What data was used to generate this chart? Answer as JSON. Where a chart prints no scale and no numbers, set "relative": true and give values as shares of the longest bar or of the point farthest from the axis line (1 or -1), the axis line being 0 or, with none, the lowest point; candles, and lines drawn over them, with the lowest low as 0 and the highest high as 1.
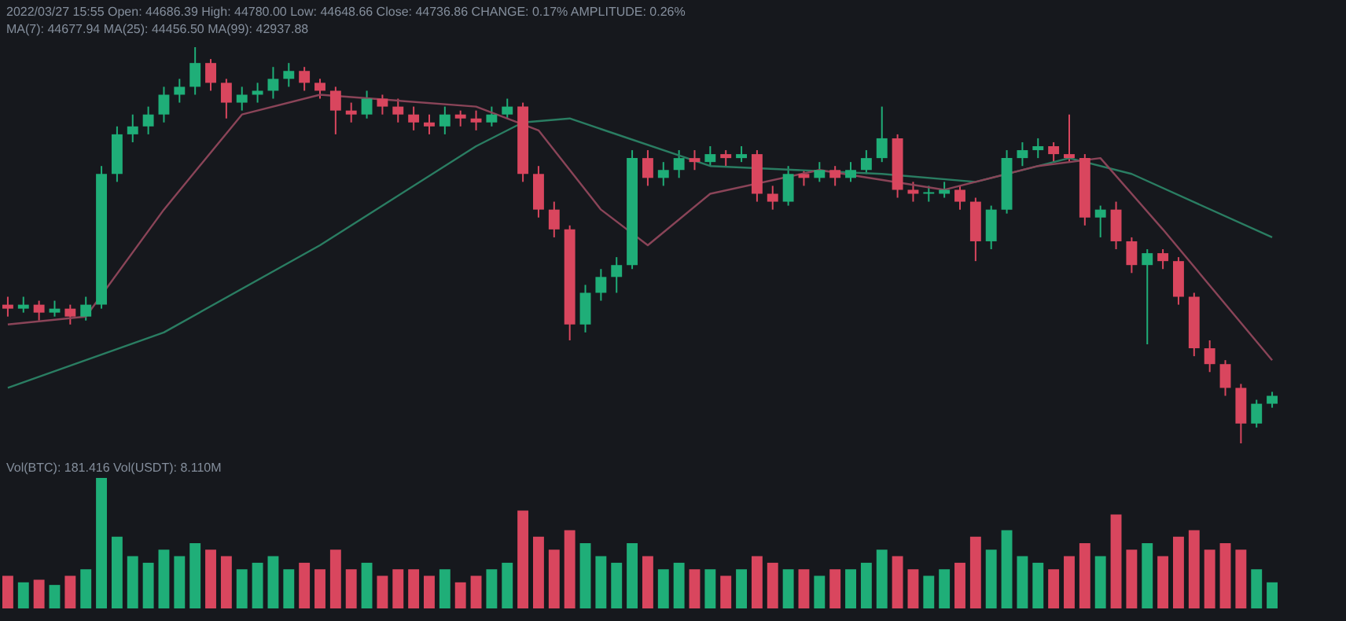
{
  "chart_data": [
    {
      "type": "candlestick",
      "relative": true,
      "title": "2022/03/27 15:55 Open: 44686.39 High: 44780.00 Low: 44648.66 Close: 44736.86 CHANGE: 0.17% AMPLITUDE: 0.26%",
      "subtitle": "MA(7): 44677.94 MA(25): 44456.50 MA(99): 42937.88",
      "categories": [
        null,
        null,
        null,
        null,
        null,
        null,
        null,
        null,
        null,
        null,
        null,
        null,
        null,
        null,
        null,
        null,
        null,
        null,
        null,
        null,
        null,
        null,
        null,
        null,
        null,
        null,
        null,
        null,
        null,
        null,
        null,
        null,
        null,
        null,
        null,
        null,
        null,
        null,
        null,
        null,
        null,
        null,
        null,
        null,
        null,
        null,
        null,
        null,
        null,
        null,
        null,
        null,
        null,
        null,
        null,
        null,
        null,
        null,
        null,
        null,
        null,
        null,
        null,
        null,
        null,
        null,
        null,
        null,
        null,
        null,
        null,
        null,
        null,
        null,
        null,
        null,
        null,
        null,
        null,
        null,
        null,
        null
      ],
      "ohlc": [
        [
          0.35,
          0.37,
          0.32,
          0.34
        ],
        [
          0.34,
          0.37,
          0.33,
          0.35
        ],
        [
          0.35,
          0.36,
          0.31,
          0.33
        ],
        [
          0.33,
          0.36,
          0.32,
          0.34
        ],
        [
          0.34,
          0.35,
          0.3,
          0.32
        ],
        [
          0.32,
          0.37,
          0.31,
          0.35
        ],
        [
          0.35,
          0.7,
          0.34,
          0.68
        ],
        [
          0.68,
          0.8,
          0.66,
          0.78
        ],
        [
          0.78,
          0.83,
          0.76,
          0.8
        ],
        [
          0.8,
          0.85,
          0.78,
          0.83
        ],
        [
          0.83,
          0.9,
          0.81,
          0.88
        ],
        [
          0.88,
          0.92,
          0.86,
          0.9
        ],
        [
          0.9,
          1.0,
          0.88,
          0.96
        ],
        [
          0.96,
          0.97,
          0.89,
          0.91
        ],
        [
          0.91,
          0.92,
          0.82,
          0.86
        ],
        [
          0.86,
          0.9,
          0.84,
          0.88
        ],
        [
          0.88,
          0.91,
          0.86,
          0.89
        ],
        [
          0.89,
          0.95,
          0.87,
          0.92
        ],
        [
          0.92,
          0.96,
          0.9,
          0.94
        ],
        [
          0.94,
          0.95,
          0.89,
          0.91
        ],
        [
          0.91,
          0.92,
          0.87,
          0.89
        ],
        [
          0.89,
          0.9,
          0.78,
          0.84
        ],
        [
          0.84,
          0.86,
          0.81,
          0.83
        ],
        [
          0.83,
          0.89,
          0.82,
          0.87
        ],
        [
          0.87,
          0.88,
          0.83,
          0.85
        ],
        [
          0.85,
          0.87,
          0.81,
          0.83
        ],
        [
          0.83,
          0.85,
          0.79,
          0.81
        ],
        [
          0.81,
          0.83,
          0.78,
          0.8
        ],
        [
          0.8,
          0.85,
          0.78,
          0.83
        ],
        [
          0.83,
          0.84,
          0.8,
          0.82
        ],
        [
          0.82,
          0.84,
          0.79,
          0.81
        ],
        [
          0.81,
          0.85,
          0.8,
          0.83
        ],
        [
          0.83,
          0.87,
          0.82,
          0.85
        ],
        [
          0.85,
          0.86,
          0.66,
          0.68
        ],
        [
          0.68,
          0.7,
          0.57,
          0.59
        ],
        [
          0.59,
          0.61,
          0.52,
          0.54
        ],
        [
          0.54,
          0.55,
          0.26,
          0.3
        ],
        [
          0.3,
          0.4,
          0.28,
          0.38
        ],
        [
          0.38,
          0.44,
          0.36,
          0.42
        ],
        [
          0.42,
          0.47,
          0.38,
          0.45
        ],
        [
          0.45,
          0.74,
          0.44,
          0.72
        ],
        [
          0.72,
          0.74,
          0.65,
          0.67
        ],
        [
          0.67,
          0.71,
          0.65,
          0.69
        ],
        [
          0.69,
          0.74,
          0.67,
          0.72
        ],
        [
          0.72,
          0.74,
          0.69,
          0.71
        ],
        [
          0.71,
          0.75,
          0.7,
          0.73
        ],
        [
          0.73,
          0.74,
          0.7,
          0.72
        ],
        [
          0.72,
          0.75,
          0.71,
          0.73
        ],
        [
          0.73,
          0.74,
          0.61,
          0.63
        ],
        [
          0.63,
          0.65,
          0.59,
          0.61
        ],
        [
          0.61,
          0.7,
          0.6,
          0.68
        ],
        [
          0.68,
          0.69,
          0.65,
          0.67
        ],
        [
          0.67,
          0.71,
          0.66,
          0.69
        ],
        [
          0.69,
          0.7,
          0.65,
          0.67
        ],
        [
          0.67,
          0.71,
          0.66,
          0.69
        ],
        [
          0.69,
          0.74,
          0.68,
          0.72
        ],
        [
          0.72,
          0.85,
          0.71,
          0.77
        ],
        [
          0.77,
          0.78,
          0.62,
          0.64
        ],
        [
          0.64,
          0.66,
          0.61,
          0.63
        ],
        [
          0.63,
          0.65,
          0.61,
          0.63
        ],
        [
          0.63,
          0.66,
          0.62,
          0.64
        ],
        [
          0.64,
          0.65,
          0.59,
          0.61
        ],
        [
          0.61,
          0.62,
          0.46,
          0.51
        ],
        [
          0.51,
          0.6,
          0.49,
          0.59
        ],
        [
          0.59,
          0.74,
          0.58,
          0.72
        ],
        [
          0.72,
          0.76,
          0.7,
          0.74
        ],
        [
          0.74,
          0.77,
          0.72,
          0.75
        ],
        [
          0.75,
          0.76,
          0.71,
          0.73
        ],
        [
          0.73,
          0.83,
          0.71,
          0.72
        ],
        [
          0.72,
          0.73,
          0.55,
          0.57
        ],
        [
          0.57,
          0.6,
          0.52,
          0.59
        ],
        [
          0.59,
          0.61,
          0.49,
          0.51
        ],
        [
          0.51,
          0.52,
          0.43,
          0.45
        ],
        [
          0.45,
          0.49,
          0.25,
          0.48
        ],
        [
          0.48,
          0.49,
          0.44,
          0.46
        ],
        [
          0.46,
          0.47,
          0.35,
          0.37
        ],
        [
          0.37,
          0.38,
          0.22,
          0.24
        ],
        [
          0.24,
          0.26,
          0.18,
          0.2
        ],
        [
          0.2,
          0.21,
          0.12,
          0.14
        ],
        [
          0.14,
          0.15,
          0.0,
          0.05
        ],
        [
          0.05,
          0.11,
          0.04,
          0.1
        ],
        [
          0.1,
          0.13,
          0.09,
          0.12
        ]
      ],
      "colors": [
        "#d9465e",
        "#1fae78",
        "#d9465e",
        "#1fae78",
        "#d9465e",
        "#1fae78",
        "#1fae78",
        "#1fae78",
        "#1fae78",
        "#1fae78",
        "#1fae78",
        "#1fae78",
        "#1fae78",
        "#d9465e",
        "#d9465e",
        "#1fae78",
        "#1fae78",
        "#1fae78",
        "#1fae78",
        "#d9465e",
        "#d9465e",
        "#d9465e",
        "#d9465e",
        "#1fae78",
        "#d9465e",
        "#d9465e",
        "#d9465e",
        "#d9465e",
        "#1fae78",
        "#d9465e",
        "#d9465e",
        "#1fae78",
        "#1fae78",
        "#d9465e",
        "#d9465e",
        "#d9465e",
        "#d9465e",
        "#1fae78",
        "#1fae78",
        "#1fae78",
        "#1fae78",
        "#d9465e",
        "#1fae78",
        "#1fae78",
        "#d9465e",
        "#1fae78",
        "#d9465e",
        "#1fae78",
        "#d9465e",
        "#d9465e",
        "#1fae78",
        "#d9465e",
        "#1fae78",
        "#d9465e",
        "#1fae78",
        "#1fae78",
        "#1fae78",
        "#d9465e",
        "#d9465e",
        "#1fae78",
        "#1fae78",
        "#d9465e",
        "#d9465e",
        "#1fae78",
        "#1fae78",
        "#1fae78",
        "#1fae78",
        "#d9465e",
        "#d9465e",
        "#d9465e",
        "#1fae78",
        "#d9465e",
        "#d9465e",
        "#1fae78",
        "#d9465e",
        "#d9465e",
        "#d9465e",
        "#d9465e",
        "#d9465e",
        "#d9465e",
        "#1fae78",
        "#1fae78"
      ],
      "series": [
        {
          "type": "line",
          "color": "#8a4458",
          "values": [
            0.3,
            null,
            null,
            null,
            null,
            0.32,
            null,
            null,
            null,
            null,
            0.59,
            null,
            null,
            null,
            null,
            0.83,
            null,
            null,
            null,
            null,
            0.88,
            null,
            null,
            null,
            null,
            null,
            null,
            null,
            null,
            null,
            0.85,
            null,
            null,
            null,
            0.79,
            null,
            null,
            null,
            0.59,
            null,
            null,
            0.5,
            null,
            null,
            null,
            0.63,
            null,
            null,
            null,
            null,
            null,
            null,
            0.69,
            null,
            null,
            null,
            null,
            null,
            null,
            null,
            0.64,
            null,
            null,
            null,
            null,
            null,
            0.7,
            null,
            null,
            null,
            0.72,
            null,
            null,
            null,
            0.54,
            null,
            null,
            null,
            null,
            null,
            null,
            0.21
          ]
        },
        {
          "type": "line",
          "color": "#2a7d62",
          "values": [
            0.14,
            null,
            null,
            null,
            null,
            null,
            null,
            null,
            null,
            null,
            0.28,
            null,
            null,
            null,
            null,
            null,
            null,
            null,
            null,
            null,
            0.5,
            null,
            null,
            null,
            null,
            null,
            null,
            null,
            null,
            null,
            0.75,
            null,
            null,
            0.81,
            null,
            null,
            0.82,
            null,
            null,
            null,
            null,
            null,
            null,
            null,
            null,
            0.7,
            null,
            null,
            null,
            null,
            null,
            null,
            null,
            null,
            null,
            null,
            0.68,
            null,
            null,
            null,
            null,
            null,
            0.66,
            null,
            null,
            null,
            null,
            null,
            0.72,
            null,
            null,
            null,
            0.68,
            null,
            null,
            null,
            null,
            null,
            null,
            null,
            null,
            0.52
          ]
        }
      ]
    },
    {
      "type": "bar",
      "relative": true,
      "title": "Vol(BTC): 181.416 Vol(USDT): 8.110M",
      "categories": [
        null,
        null,
        null,
        null,
        null,
        null,
        null,
        null,
        null,
        null,
        null,
        null,
        null,
        null,
        null,
        null,
        null,
        null,
        null,
        null,
        null,
        null,
        null,
        null,
        null,
        null,
        null,
        null,
        null,
        null,
        null,
        null,
        null,
        null,
        null,
        null,
        null,
        null,
        null,
        null,
        null,
        null,
        null,
        null,
        null,
        null,
        null,
        null,
        null,
        null,
        null,
        null,
        null,
        null,
        null,
        null,
        null,
        null,
        null,
        null,
        null,
        null,
        null,
        null,
        null,
        null,
        null,
        null,
        null,
        null,
        null,
        null,
        null,
        null,
        null,
        null,
        null,
        null,
        null,
        null,
        null,
        null
      ],
      "values": [
        0.25,
        0.2,
        0.22,
        0.18,
        0.25,
        0.3,
        1.0,
        0.55,
        0.4,
        0.35,
        0.45,
        0.4,
        0.5,
        0.45,
        0.4,
        0.3,
        0.35,
        0.4,
        0.3,
        0.35,
        0.3,
        0.45,
        0.3,
        0.35,
        0.25,
        0.3,
        0.3,
        0.25,
        0.3,
        0.2,
        0.25,
        0.3,
        0.35,
        0.75,
        0.55,
        0.45,
        0.6,
        0.5,
        0.4,
        0.35,
        0.5,
        0.4,
        0.3,
        0.35,
        0.3,
        0.3,
        0.25,
        0.3,
        0.4,
        0.35,
        0.3,
        0.3,
        0.25,
        0.3,
        0.3,
        0.35,
        0.45,
        0.4,
        0.3,
        0.25,
        0.3,
        0.35,
        0.55,
        0.45,
        0.6,
        0.4,
        0.35,
        0.3,
        0.4,
        0.5,
        0.4,
        0.72,
        0.45,
        0.5,
        0.4,
        0.55,
        0.6,
        0.45,
        0.5,
        0.45,
        0.3,
        0.2
      ],
      "colors": [
        "#d9465e",
        "#1fae78",
        "#d9465e",
        "#1fae78",
        "#d9465e",
        "#1fae78",
        "#1fae78",
        "#1fae78",
        "#1fae78",
        "#1fae78",
        "#1fae78",
        "#1fae78",
        "#1fae78",
        "#d9465e",
        "#d9465e",
        "#1fae78",
        "#1fae78",
        "#1fae78",
        "#1fae78",
        "#d9465e",
        "#d9465e",
        "#d9465e",
        "#d9465e",
        "#1fae78",
        "#d9465e",
        "#d9465e",
        "#d9465e",
        "#d9465e",
        "#1fae78",
        "#d9465e",
        "#d9465e",
        "#1fae78",
        "#1fae78",
        "#d9465e",
        "#d9465e",
        "#d9465e",
        "#d9465e",
        "#1fae78",
        "#1fae78",
        "#1fae78",
        "#1fae78",
        "#d9465e",
        "#1fae78",
        "#1fae78",
        "#d9465e",
        "#1fae78",
        "#d9465e",
        "#1fae78",
        "#d9465e",
        "#d9465e",
        "#1fae78",
        "#d9465e",
        "#1fae78",
        "#d9465e",
        "#1fae78",
        "#1fae78",
        "#1fae78",
        "#d9465e",
        "#d9465e",
        "#1fae78",
        "#1fae78",
        "#d9465e",
        "#d9465e",
        "#1fae78",
        "#1fae78",
        "#1fae78",
        "#1fae78",
        "#d9465e",
        "#d9465e",
        "#d9465e",
        "#1fae78",
        "#d9465e",
        "#d9465e",
        "#1fae78",
        "#d9465e",
        "#d9465e",
        "#d9465e",
        "#d9465e",
        "#d9465e",
        "#d9465e",
        "#1fae78",
        "#1fae78"
      ]
    }
  ]
}
